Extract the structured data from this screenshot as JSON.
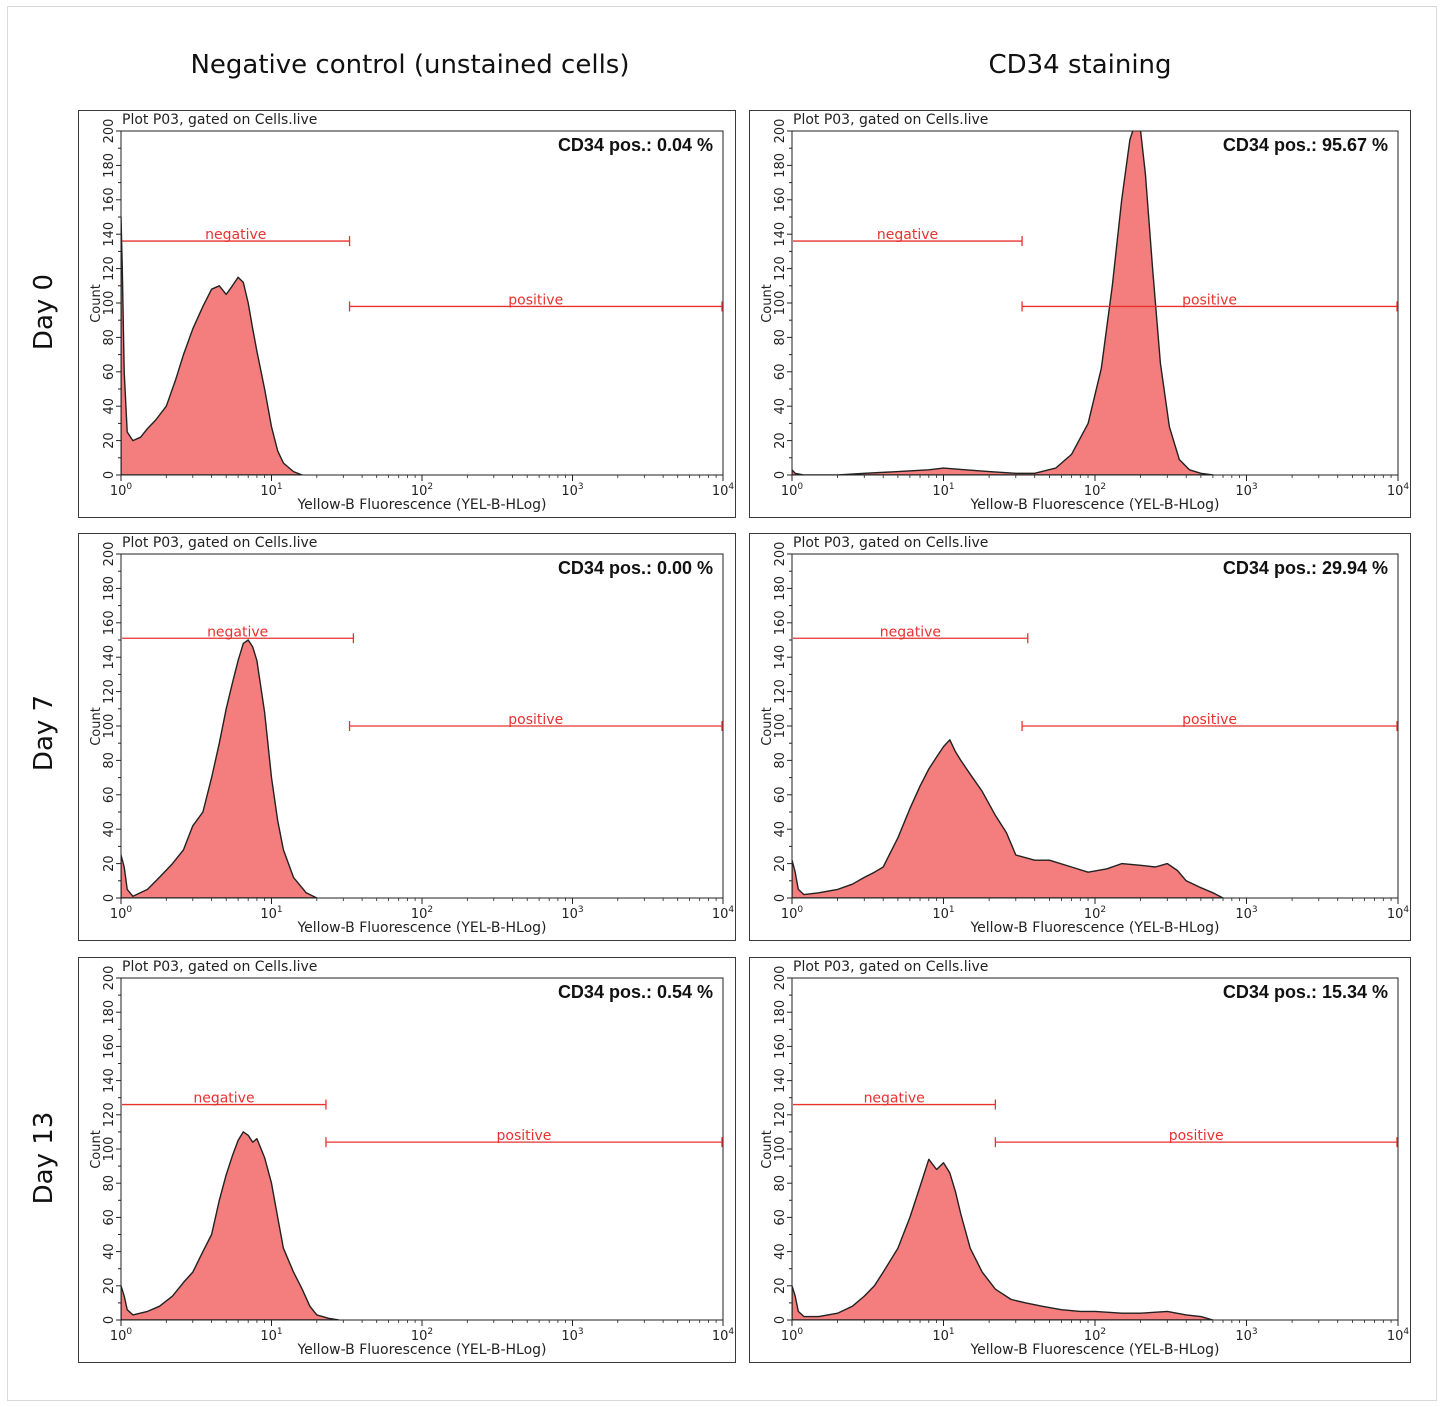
{
  "column_headers": [
    "Negative control (unstained cells)",
    "CD34 staining"
  ],
  "row_labels": [
    "Day 0",
    "Day 7",
    "Day 13"
  ],
  "colors": {
    "fill": "#f47d7d",
    "outline": "#222222",
    "gate": "#e8322f",
    "axis": "#222222"
  },
  "chart_data": [
    {
      "type": "area",
      "row": "Day 0",
      "column": "Negative control (unstained cells)",
      "title": "Plot P03, gated on Cells.live",
      "annotation": "CD34 pos.: 0.04 %",
      "xlabel": "Yellow-B Fluorescence (YEL-B-HLog)",
      "ylabel": "Count",
      "xscale": "log",
      "xlim": [
        1,
        10000
      ],
      "ylim": [
        0,
        200
      ],
      "x_ticks": [
        "10^0",
        "10^1",
        "10^2",
        "10^3",
        "10^4"
      ],
      "y_ticks": [
        0,
        20,
        40,
        60,
        80,
        100,
        120,
        140,
        160,
        180,
        200
      ],
      "gates": [
        {
          "label": "negative",
          "x_range": [
            1,
            33
          ],
          "y": 136
        },
        {
          "label": "positive",
          "x_range": [
            33,
            10000
          ],
          "y": 98
        }
      ],
      "x": [
        1,
        1.02,
        1.05,
        1.1,
        1.2,
        1.35,
        1.5,
        1.7,
        2,
        2.3,
        2.6,
        3,
        3.5,
        4,
        4.5,
        5,
        5.5,
        6,
        6.5,
        7,
        7.5,
        8,
        9,
        10,
        11,
        12,
        14,
        16
      ],
      "y": [
        150,
        120,
        60,
        25,
        20,
        22,
        27,
        32,
        40,
        55,
        70,
        85,
        98,
        108,
        110,
        105,
        110,
        115,
        112,
        100,
        85,
        72,
        50,
        28,
        14,
        7,
        2,
        0
      ]
    },
    {
      "type": "area",
      "row": "Day 0",
      "column": "CD34 staining",
      "title": "Plot P03, gated on Cells.live",
      "annotation": "CD34 pos.: 95.67 %",
      "xlabel": "Yellow-B Fluorescence (YEL-B-HLog)",
      "ylabel": "Count",
      "xscale": "log",
      "xlim": [
        1,
        10000
      ],
      "ylim": [
        0,
        200
      ],
      "x_ticks": [
        "10^0",
        "10^1",
        "10^2",
        "10^3",
        "10^4"
      ],
      "y_ticks": [
        0,
        20,
        40,
        60,
        80,
        100,
        120,
        140,
        160,
        180,
        200
      ],
      "gates": [
        {
          "label": "negative",
          "x_range": [
            1,
            33
          ],
          "y": 136
        },
        {
          "label": "positive",
          "x_range": [
            33,
            10000
          ],
          "y": 98
        }
      ],
      "x": [
        1,
        1.05,
        1.2,
        2,
        3,
        5,
        8,
        10,
        14,
        20,
        30,
        40,
        55,
        70,
        90,
        110,
        130,
        150,
        170,
        185,
        200,
        215,
        240,
        270,
        310,
        360,
        420,
        500,
        600
      ],
      "y": [
        3,
        1,
        0,
        0,
        1,
        2,
        3,
        4,
        3,
        2,
        1,
        1,
        4,
        12,
        30,
        62,
        110,
        160,
        195,
        205,
        200,
        175,
        120,
        65,
        28,
        9,
        3,
        1,
        0
      ]
    },
    {
      "type": "area",
      "row": "Day 7",
      "column": "Negative control (unstained cells)",
      "title": "Plot P03, gated on Cells.live",
      "annotation": "CD34 pos.: 0.00 %",
      "xlabel": "Yellow-B Fluorescence (YEL-B-HLog)",
      "ylabel": "Count",
      "xscale": "log",
      "xlim": [
        1,
        10000
      ],
      "ylim": [
        0,
        200
      ],
      "x_ticks": [
        "10^0",
        "10^1",
        "10^2",
        "10^3",
        "10^4"
      ],
      "y_ticks": [
        0,
        20,
        40,
        60,
        80,
        100,
        120,
        140,
        160,
        180,
        200
      ],
      "gates": [
        {
          "label": "negative",
          "x_range": [
            1,
            35
          ],
          "y": 151
        },
        {
          "label": "positive",
          "x_range": [
            33,
            10000
          ],
          "y": 100
        }
      ],
      "x": [
        1,
        1.05,
        1.1,
        1.2,
        1.5,
        1.8,
        2.2,
        2.6,
        3,
        3.5,
        4,
        4.5,
        5,
        5.5,
        6,
        6.5,
        7,
        7.5,
        8,
        9,
        10,
        11,
        12,
        14,
        17,
        20
      ],
      "y": [
        25,
        18,
        5,
        1,
        5,
        12,
        20,
        28,
        42,
        50,
        70,
        90,
        110,
        125,
        138,
        148,
        150,
        146,
        138,
        108,
        70,
        45,
        28,
        12,
        3,
        0
      ]
    },
    {
      "type": "area",
      "row": "Day 7",
      "column": "CD34 staining",
      "title": "Plot P03, gated on Cells.live",
      "annotation": "CD34 pos.: 29.94 %",
      "xlabel": "Yellow-B Fluorescence (YEL-B-HLog)",
      "ylabel": "Count",
      "xscale": "log",
      "xlim": [
        1,
        10000
      ],
      "ylim": [
        0,
        200
      ],
      "x_ticks": [
        "10^0",
        "10^1",
        "10^2",
        "10^3",
        "10^4"
      ],
      "y_ticks": [
        0,
        20,
        40,
        60,
        80,
        100,
        120,
        140,
        160,
        180,
        200
      ],
      "gates": [
        {
          "label": "negative",
          "x_range": [
            1,
            36
          ],
          "y": 151
        },
        {
          "label": "positive",
          "x_range": [
            33,
            10000
          ],
          "y": 100
        }
      ],
      "x": [
        1,
        1.05,
        1.1,
        1.2,
        1.5,
        2,
        2.5,
        3,
        3.5,
        4,
        5,
        6,
        7,
        8,
        9,
        10,
        11,
        12,
        13,
        15,
        18,
        22,
        26,
        30,
        40,
        50,
        70,
        90,
        120,
        150,
        200,
        250,
        300,
        350,
        400,
        500,
        600,
        700
      ],
      "y": [
        22,
        15,
        5,
        2,
        3,
        5,
        8,
        12,
        15,
        18,
        35,
        52,
        65,
        75,
        82,
        88,
        92,
        85,
        80,
        72,
        62,
        48,
        38,
        25,
        22,
        22,
        18,
        15,
        17,
        20,
        19,
        18,
        20,
        16,
        10,
        6,
        3,
        0
      ]
    },
    {
      "type": "area",
      "row": "Day 13",
      "column": "Negative control (unstained cells)",
      "title": "Plot P03, gated on Cells.live",
      "annotation": "CD34 pos.: 0.54 %",
      "xlabel": "Yellow-B Fluorescence (YEL-B-HLog)",
      "ylabel": "Count",
      "xscale": "log",
      "xlim": [
        1,
        10000
      ],
      "ylim": [
        0,
        200
      ],
      "x_ticks": [
        "10^0",
        "10^1",
        "10^2",
        "10^3",
        "10^4"
      ],
      "y_ticks": [
        0,
        20,
        40,
        60,
        80,
        100,
        120,
        140,
        160,
        180,
        200
      ],
      "gates": [
        {
          "label": "negative",
          "x_range": [
            1,
            23
          ],
          "y": 126
        },
        {
          "label": "positive",
          "x_range": [
            23,
            10000
          ],
          "y": 104
        }
      ],
      "x": [
        1,
        1.05,
        1.1,
        1.2,
        1.5,
        1.8,
        2.2,
        2.6,
        3,
        3.5,
        4,
        4.5,
        5,
        5.5,
        6,
        6.5,
        7,
        7.5,
        8,
        9,
        10,
        11,
        12,
        14,
        16,
        18,
        20,
        24,
        28
      ],
      "y": [
        20,
        14,
        6,
        3,
        5,
        8,
        14,
        22,
        28,
        40,
        50,
        70,
        85,
        96,
        105,
        110,
        108,
        104,
        106,
        95,
        80,
        60,
        42,
        28,
        18,
        8,
        3,
        1,
        0
      ]
    },
    {
      "type": "area",
      "row": "Day 13",
      "column": "CD34 staining",
      "title": "Plot P03, gated on Cells.live",
      "annotation": "CD34 pos.: 15.34 %",
      "xlabel": "Yellow-B Fluorescence (YEL-B-HLog)",
      "ylabel": "Count",
      "xscale": "log",
      "xlim": [
        1,
        10000
      ],
      "ylim": [
        0,
        200
      ],
      "x_ticks": [
        "10^0",
        "10^1",
        "10^2",
        "10^3",
        "10^4"
      ],
      "y_ticks": [
        0,
        20,
        40,
        60,
        80,
        100,
        120,
        140,
        160,
        180,
        200
      ],
      "gates": [
        {
          "label": "negative",
          "x_range": [
            1,
            22
          ],
          "y": 126
        },
        {
          "label": "positive",
          "x_range": [
            22,
            10000
          ],
          "y": 104
        }
      ],
      "x": [
        1,
        1.05,
        1.1,
        1.2,
        1.5,
        2,
        2.5,
        3,
        3.5,
        4,
        5,
        6,
        7,
        8,
        9,
        10,
        11,
        12,
        13,
        15,
        18,
        22,
        28,
        35,
        45,
        60,
        80,
        100,
        150,
        200,
        300,
        400,
        500,
        600
      ],
      "y": [
        20,
        14,
        5,
        2,
        2,
        4,
        8,
        14,
        20,
        28,
        42,
        60,
        78,
        94,
        88,
        92,
        86,
        75,
        62,
        42,
        28,
        18,
        12,
        10,
        8,
        6,
        5,
        5,
        4,
        4,
        5,
        3,
        2,
        0
      ]
    }
  ]
}
